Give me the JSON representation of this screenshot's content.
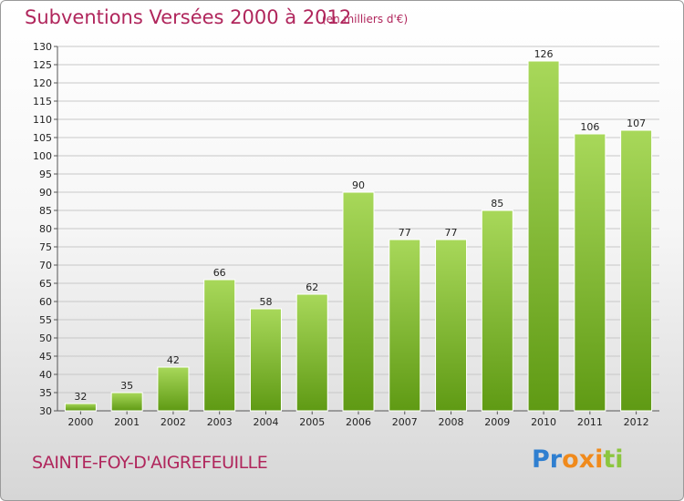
{
  "header": {
    "title": "Subventions Versées 2000 à 2012",
    "subtitle": "(en milliers d'€)"
  },
  "footer": {
    "commune": "SAINTE-FOY-D'AIGREFEUILLE",
    "logo_text": "Proxiti",
    "logo_letters": [
      "P",
      "r",
      "o",
      "x",
      "i",
      "t",
      "i"
    ],
    "logo_colors": [
      "#2f7fd0",
      "#2f7fd0",
      "#f08a1c",
      "#f08a1c",
      "#f08a1c",
      "#8cc63f",
      "#8cc63f"
    ]
  },
  "colors": {
    "title": "#b0265c",
    "bar_top": "#a8d85a",
    "bar_bottom": "#5f9a14",
    "grid": "#c8c8c8"
  },
  "chart_data": {
    "type": "bar",
    "categories": [
      "2000",
      "2001",
      "2002",
      "2003",
      "2004",
      "2005",
      "2006",
      "2007",
      "2008",
      "2009",
      "2010",
      "2011",
      "2012"
    ],
    "values": [
      32,
      35,
      42,
      66,
      58,
      62,
      90,
      77,
      77,
      85,
      126,
      106,
      107
    ],
    "title": "Subventions Versées 2000 à 2012",
    "subtitle": "(en milliers d'€)",
    "ylim": [
      30,
      130
    ],
    "ytick_step": 5,
    "grid": true
  }
}
